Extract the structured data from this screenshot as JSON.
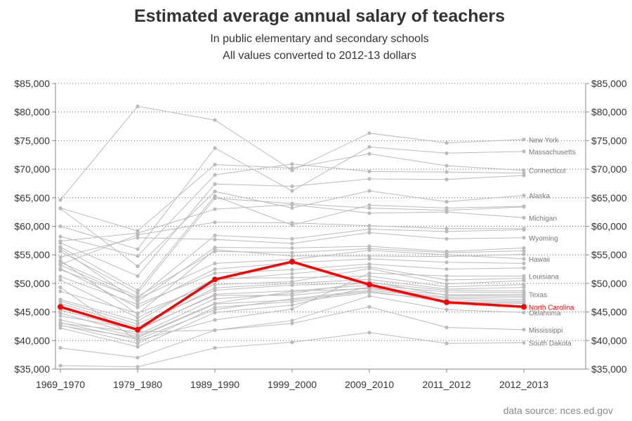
{
  "chart_data": {
    "type": "line",
    "title": "Estimated average annual salary of teachers",
    "subtitle_lines": [
      "In public elementary and secondary schools",
      "All values converted to 2012-13 dollars"
    ],
    "source": "data source: nces.ed.gov",
    "categories": [
      "1969_1970",
      "1979_1980",
      "1989_1990",
      "1999_2000",
      "2009_2010",
      "2011_2012",
      "2012_2013"
    ],
    "y_ticks": [
      "$35,000",
      "$40,000",
      "$45,000",
      "$50,000",
      "$55,000",
      "$60,000",
      "$65,000",
      "$70,000",
      "$75,000",
      "$80,000",
      "$85,000"
    ],
    "ylim": [
      35000,
      85000
    ],
    "grid": "horizontal dotted",
    "colors": {
      "highlight": "#ff0000",
      "other": "#bbbbbb"
    },
    "highlight_series": {
      "name": "North Carolina",
      "values": [
        45900,
        41900,
        50700,
        53800,
        49800,
        46700,
        45900
      ]
    },
    "series": [
      {
        "name": "New York",
        "values": [
          64600,
          81000,
          78600,
          69800,
          76300,
          74600,
          75200
        ]
      },
      {
        "name": "Massachusetts",
        "values": [
          60000,
          56000,
          73700,
          66200,
          73900,
          72800,
          73100
        ]
      },
      {
        "name": "Connecticut",
        "values": [
          63200,
          59200,
          70800,
          70200,
          72700,
          70600,
          69800
        ]
      },
      {
        "name": "",
        "values": [
          58200,
          54800,
          69000,
          70900,
          69600,
          69500,
          69300
        ]
      },
      {
        "name": "",
        "values": [
          57100,
          51300,
          67400,
          67000,
          68300,
          68200,
          68900
        ]
      },
      {
        "name": "Alaska",
        "values": [
          63100,
          53000,
          66100,
          63200,
          66200,
          64300,
          65400
        ]
      },
      {
        "name": "",
        "values": [
          56400,
          48800,
          65300,
          60200,
          63700,
          63200,
          63500
        ]
      },
      {
        "name": "",
        "values": [
          55600,
          48300,
          64900,
          64000,
          63200,
          62800,
          63400
        ]
      },
      {
        "name": "Michigan",
        "values": [
          57400,
          58800,
          63000,
          63800,
          62300,
          62500,
          61500
        ]
      },
      {
        "name": "",
        "values": [
          53300,
          58500,
          60700,
          60600,
          60100,
          59600,
          59600
        ]
      },
      {
        "name": "",
        "values": [
          52400,
          47400,
          58400,
          57800,
          59500,
          59100,
          59400
        ]
      },
      {
        "name": "Wyoming",
        "values": [
          54600,
          58000,
          57700,
          57000,
          58900,
          57800,
          58000
        ]
      },
      {
        "name": "",
        "values": [
          56100,
          46800,
          56300,
          56200,
          56500,
          55600,
          56200
        ]
      },
      {
        "name": "",
        "values": [
          53700,
          47700,
          55600,
          55400,
          56100,
          55400,
          55700
        ]
      },
      {
        "name": "",
        "values": [
          54000,
          44600,
          55900,
          54800,
          54800,
          54700,
          55100
        ]
      },
      {
        "name": "Hawaii",
        "values": [
          53200,
          47300,
          53500,
          54200,
          55800,
          55000,
          54300
        ]
      },
      {
        "name": "",
        "values": [
          52600,
          45800,
          52500,
          53600,
          54300,
          53700,
          53500
        ]
      },
      {
        "name": "",
        "values": [
          51200,
          46300,
          51800,
          52400,
          53400,
          52500,
          52700
        ]
      },
      {
        "name": "Louisiana",
        "values": [
          49300,
          40000,
          43600,
          45500,
          51800,
          51300,
          51300
        ]
      },
      {
        "name": "",
        "values": [
          50600,
          44000,
          50600,
          51700,
          52900,
          50600,
          50900
        ]
      },
      {
        "name": "",
        "values": [
          48600,
          44800,
          49800,
          50300,
          52600,
          49900,
          50500
        ]
      },
      {
        "name": "",
        "values": [
          47200,
          43400,
          50900,
          51000,
          51300,
          49400,
          49800
        ]
      },
      {
        "name": "",
        "values": [
          46500,
          42400,
          49200,
          50000,
          50700,
          49000,
          49300
        ]
      },
      {
        "name": "",
        "values": [
          46900,
          42900,
          48800,
          49700,
          50100,
          48800,
          48700
        ]
      },
      {
        "name": "",
        "values": [
          45300,
          41800,
          48100,
          48700,
          49700,
          48500,
          48400
        ]
      },
      {
        "name": "Texas",
        "values": [
          44300,
          42000,
          47900,
          47900,
          49300,
          48000,
          48100
        ]
      },
      {
        "name": "",
        "values": [
          44800,
          41000,
          47300,
          48200,
          50300,
          47900,
          47800
        ]
      },
      {
        "name": "",
        "values": [
          43600,
          40700,
          46500,
          48600,
          49100,
          47600,
          47600
        ]
      },
      {
        "name": "",
        "values": [
          43100,
          40200,
          45400,
          47300,
          48800,
          47400,
          47200
        ]
      },
      {
        "name": "",
        "values": [
          42700,
          39500,
          45800,
          46800,
          48400,
          47100,
          46900
        ]
      },
      {
        "name": "",
        "values": [
          42600,
          40500,
          46400,
          47100,
          48600,
          46800,
          46700
        ]
      },
      {
        "name": "",
        "values": [
          42200,
          38900,
          44900,
          46200,
          49400,
          46600,
          46500
        ]
      },
      {
        "name": "Oklahoma",
        "values": [
          43000,
          41500,
          41800,
          43500,
          47800,
          45400,
          44900
        ]
      },
      {
        "name": "Mississippi",
        "values": [
          38700,
          37000,
          41800,
          43000,
          45900,
          42300,
          41900
        ]
      },
      {
        "name": "South Dakota",
        "values": [
          35600,
          35400,
          38700,
          39700,
          41400,
          39500,
          39600
        ]
      }
    ]
  }
}
